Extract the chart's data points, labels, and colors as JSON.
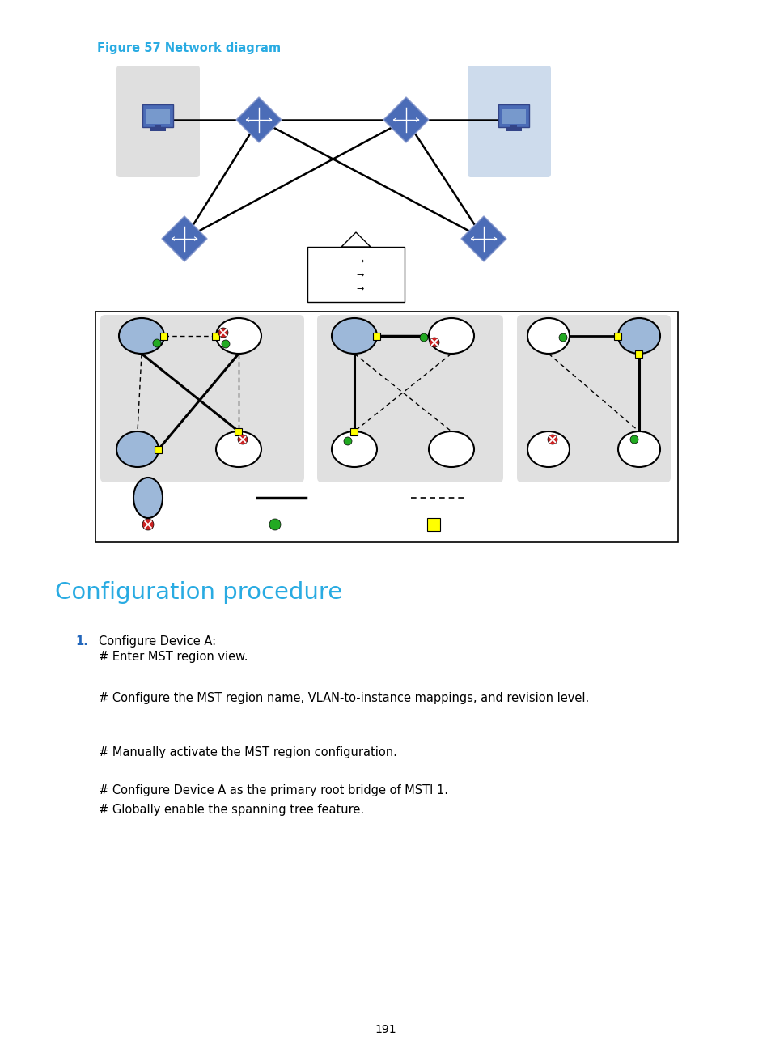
{
  "title": "Figure 57 Network diagram",
  "title_color": "#29ABE2",
  "title_fontsize": 10.5,
  "config_title": "Configuration procedure",
  "config_title_color": "#29ABE2",
  "config_title_fontsize": 21,
  "page_number": "191",
  "bg_color": "#ffffff",
  "node_fill_blue": "#9DB8D9",
  "node_fill_white": "#ffffff",
  "green_dot_color": "#22AA22",
  "red_dot_color": "#CC2222",
  "yellow_sq_color": "#FFFF00",
  "switch_color": "#4B6CB7",
  "gray_bg": "#D8D8D8",
  "light_blue_bg": "#B8CCE4"
}
